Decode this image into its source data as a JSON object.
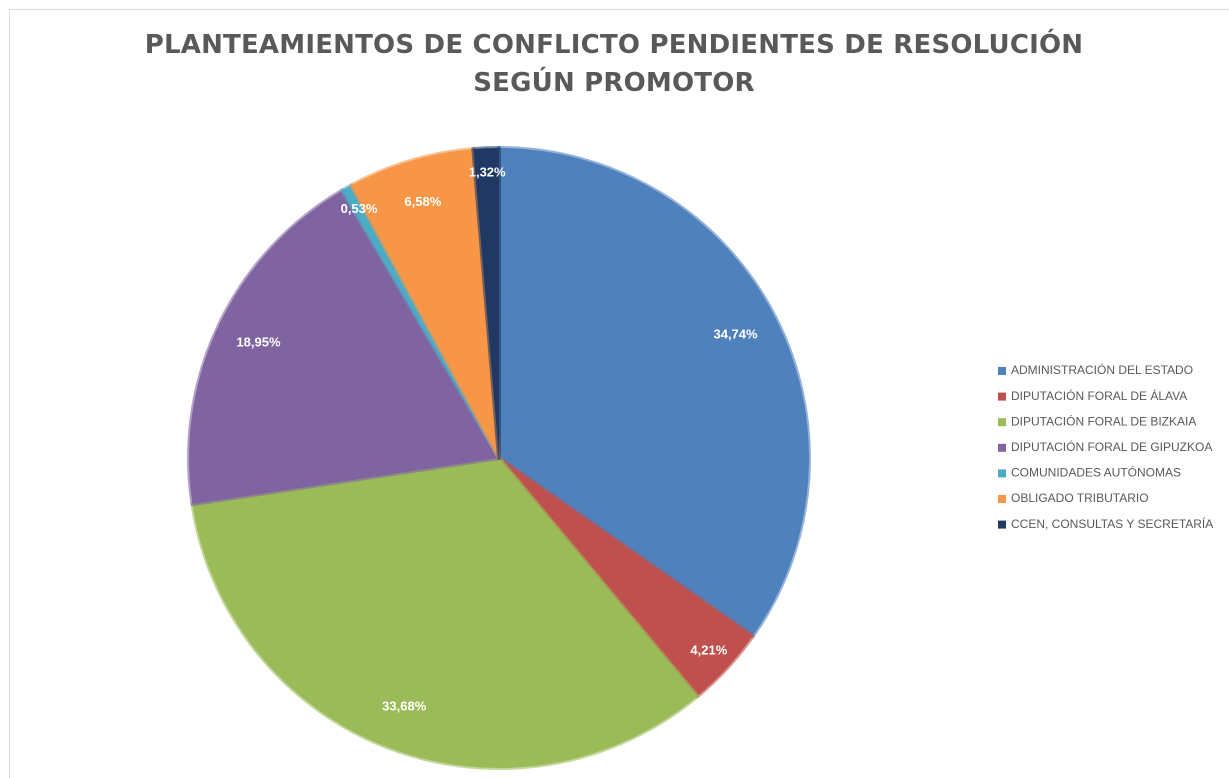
{
  "chart_data": {
    "type": "pie",
    "title": "PLANTEAMIENTOS DE CONFLICTO PENDIENTES DE RESOLUCIÓN SEGÚN PROMOTOR",
    "categories": [
      "ADMINISTRACIÓN DEL ESTADO",
      "DIPUTACIÓN FORAL DE ÁLAVA",
      "DIPUTACIÓN FORAL DE BIZKAIA",
      "DIPUTACIÓN FORAL DE GIPUZKOA",
      "COMUNIDADES AUTÓNOMAS",
      "OBLIGADO TRIBUTARIO",
      "CCEN, CONSULTAS Y SECRETARÍA"
    ],
    "values": [
      34.74,
      4.21,
      33.68,
      18.95,
      0.53,
      6.58,
      1.32
    ],
    "value_labels": [
      "34,74%",
      "4,21%",
      "33,68%",
      "18,95%",
      "0,53%",
      "6,58%",
      "1,32%"
    ],
    "colors": [
      "#4f81bd",
      "#c0504d",
      "#9bbb59",
      "#8064a2",
      "#4bacc6",
      "#f79646",
      "#1f3864"
    ],
    "legend": "right"
  }
}
